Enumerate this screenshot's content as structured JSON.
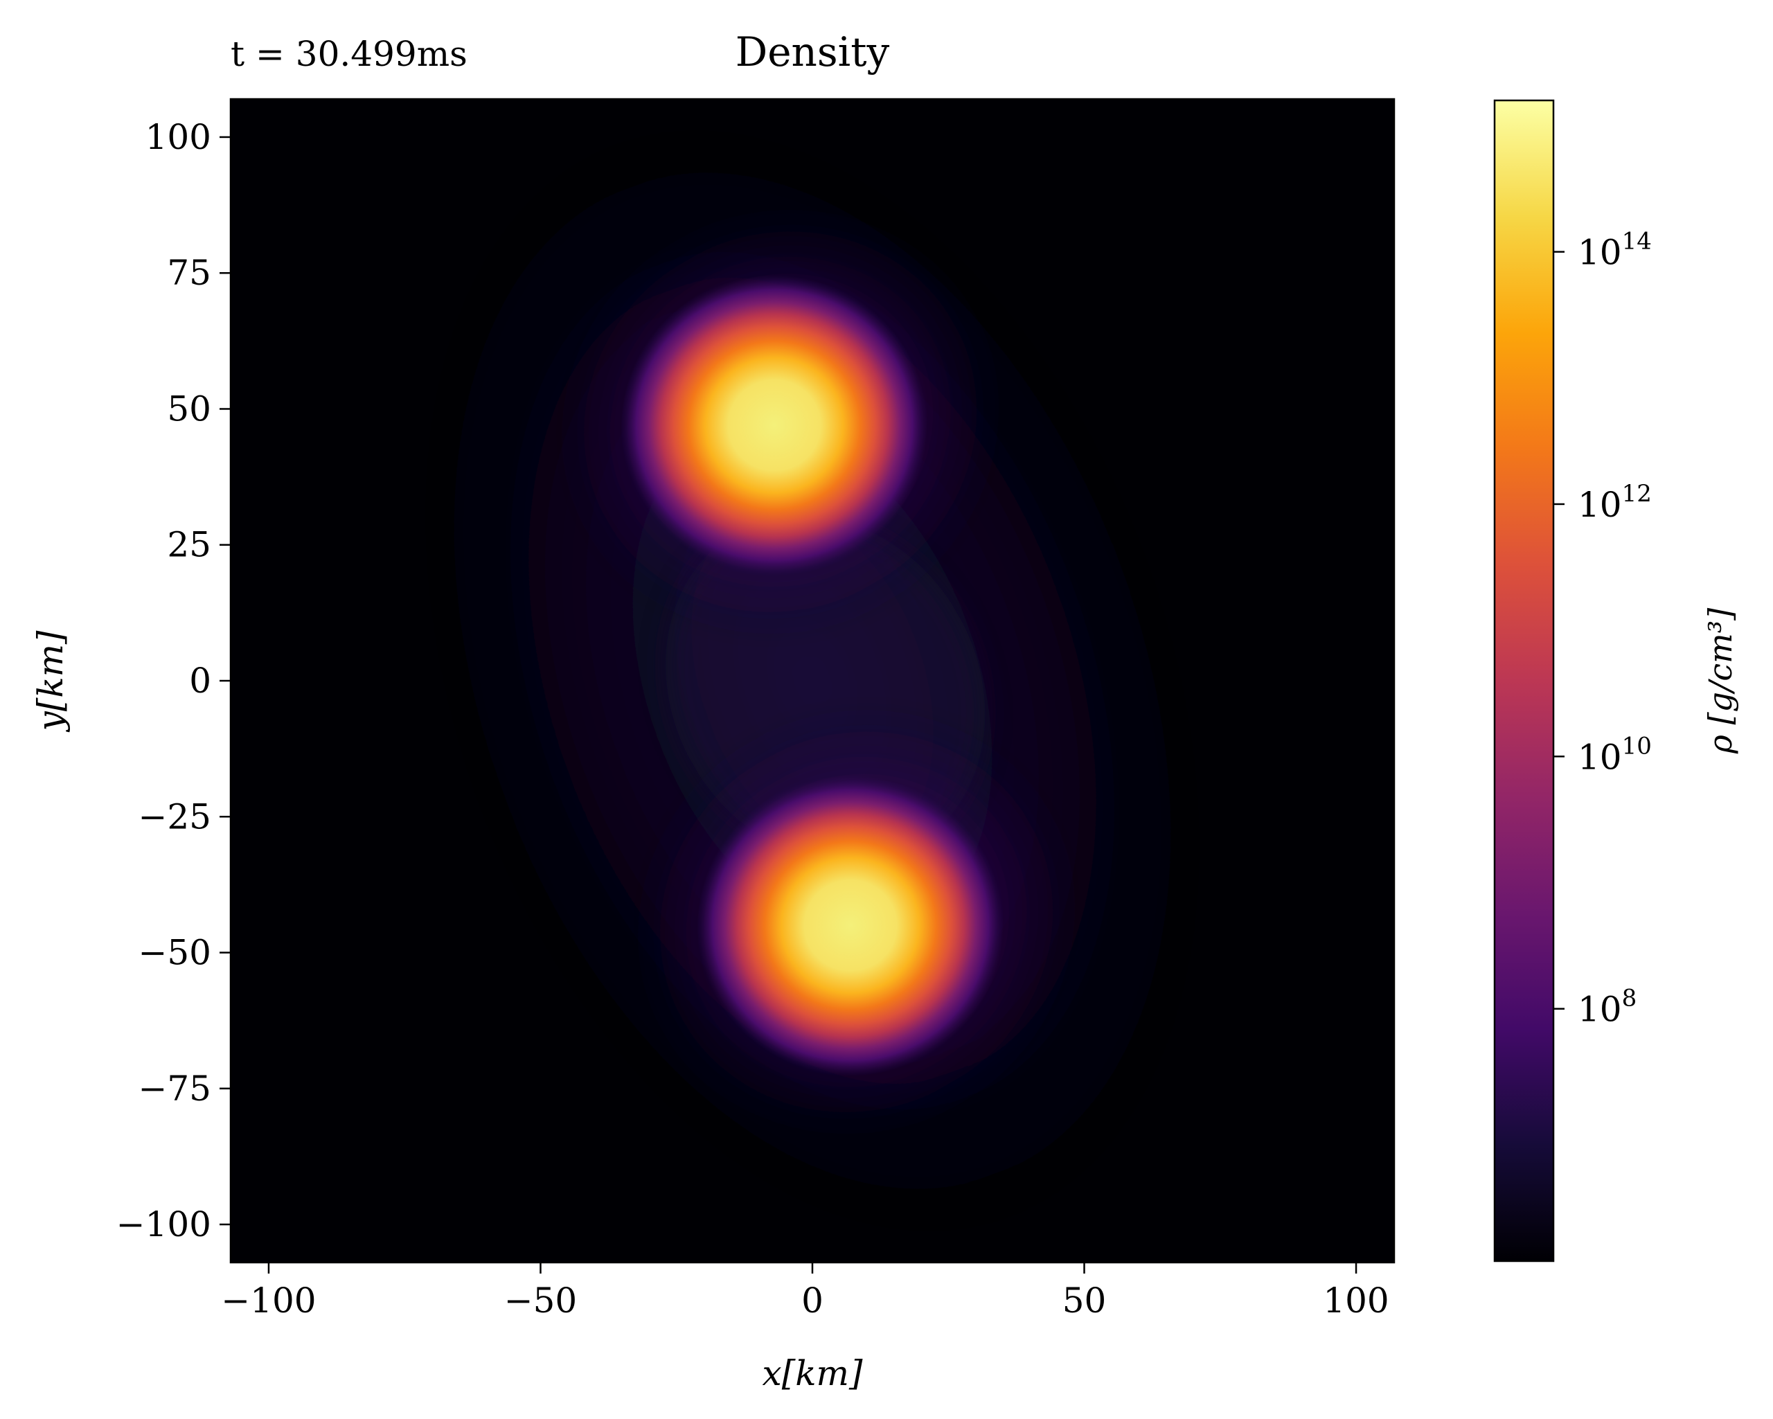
{
  "chart_data": {
    "type": "heatmap",
    "title": "Density",
    "annotation": "t = 30.499ms",
    "xlabel": "x[km]",
    "ylabel": "y[km]",
    "xlim": [
      -107,
      107
    ],
    "ylim": [
      -107,
      107
    ],
    "x_ticks": [
      {
        "value": -100,
        "label": "−100"
      },
      {
        "value": -50,
        "label": "−50"
      },
      {
        "value": 0,
        "label": "0"
      },
      {
        "value": 50,
        "label": "50"
      },
      {
        "value": 100,
        "label": "100"
      }
    ],
    "y_ticks": [
      {
        "value": 100,
        "label": "100"
      },
      {
        "value": 75,
        "label": "75"
      },
      {
        "value": 50,
        "label": "50"
      },
      {
        "value": 25,
        "label": "25"
      },
      {
        "value": 0,
        "label": "0"
      },
      {
        "value": -25,
        "label": "−25"
      },
      {
        "value": -50,
        "label": "−50"
      },
      {
        "value": -75,
        "label": "−75"
      },
      {
        "value": -100,
        "label": "−100"
      }
    ],
    "colorbar": {
      "label": "ρ [g/cm³]",
      "scale": "log",
      "colormap": "inferno",
      "log10_range": [
        6.0,
        15.2
      ],
      "ticks": [
        {
          "log10": 8,
          "label": "10^8"
        },
        {
          "log10": 10,
          "label": "10^10"
        },
        {
          "log10": 12,
          "label": "10^12"
        },
        {
          "log10": 14,
          "label": "10^14"
        }
      ]
    },
    "features": [
      {
        "name": "upper-core",
        "x": -7,
        "y": 47,
        "core_radius_km": 12,
        "peak_log10_density": 15.0
      },
      {
        "name": "lower-core",
        "x": 7,
        "y": -45,
        "core_radius_km": 12,
        "peak_log10_density": 15.0
      }
    ],
    "grid": false,
    "background_color": "#000004"
  }
}
